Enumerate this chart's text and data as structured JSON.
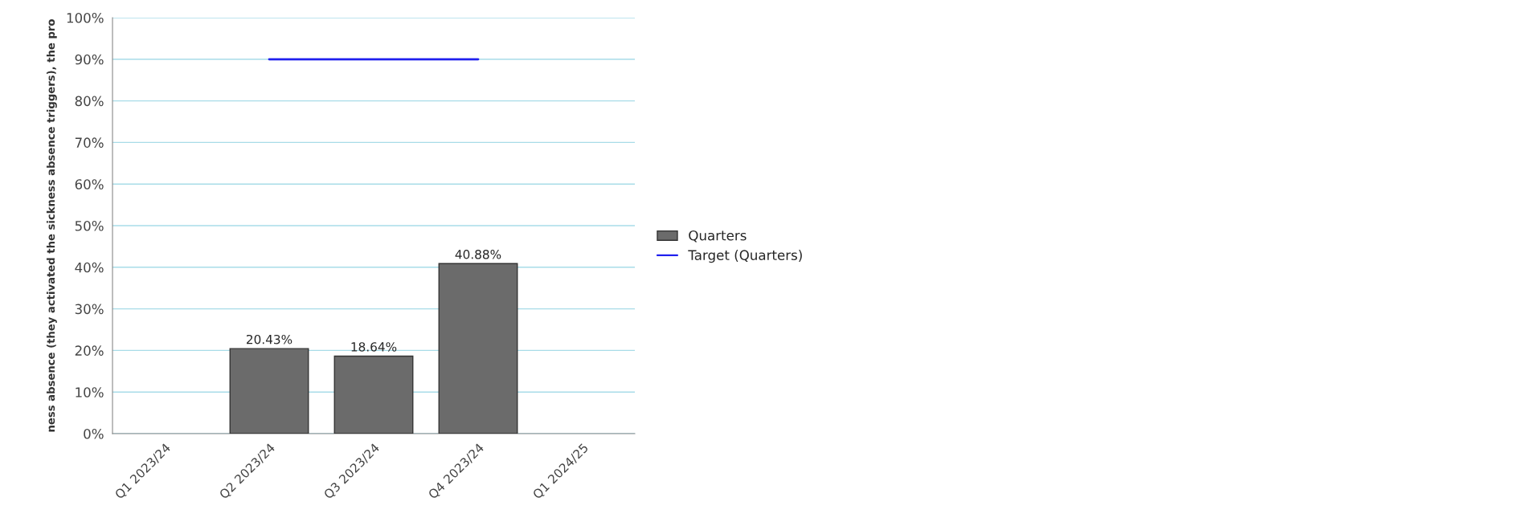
{
  "chart_data": {
    "type": "bar",
    "ylabel": "ness absence (they activated the sickness absence triggers), the pro",
    "categories": [
      "Q1 2023/24",
      "Q2 2023/24",
      "Q3 2023/24",
      "Q4 2023/24",
      "Q1 2024/25"
    ],
    "series": [
      {
        "name": "Quarters",
        "color": "#6b6b6b",
        "values": [
          null,
          20.43,
          18.64,
          40.88,
          null
        ],
        "value_labels": [
          null,
          "20.43%",
          "18.64%",
          "40.88%",
          null
        ]
      },
      {
        "name": "Target (Quarters)",
        "type": "line",
        "color": "#2020ee",
        "values": [
          null,
          90,
          90,
          90,
          null
        ]
      }
    ],
    "ylim": [
      0,
      100
    ],
    "yticks": [
      {
        "value": 0,
        "label": "0%"
      },
      {
        "value": 10,
        "label": "10%"
      },
      {
        "value": 20,
        "label": "20%"
      },
      {
        "value": 30,
        "label": "30%"
      },
      {
        "value": 40,
        "label": "40%"
      },
      {
        "value": 50,
        "label": "50%"
      },
      {
        "value": 60,
        "label": "60%"
      },
      {
        "value": 70,
        "label": "70%"
      },
      {
        "value": 80,
        "label": "80%"
      },
      {
        "value": 90,
        "label": "90%"
      },
      {
        "value": 100,
        "label": "100%"
      }
    ],
    "grid": "y",
    "legend": "right",
    "marker": "none",
    "line_style": "solid"
  }
}
